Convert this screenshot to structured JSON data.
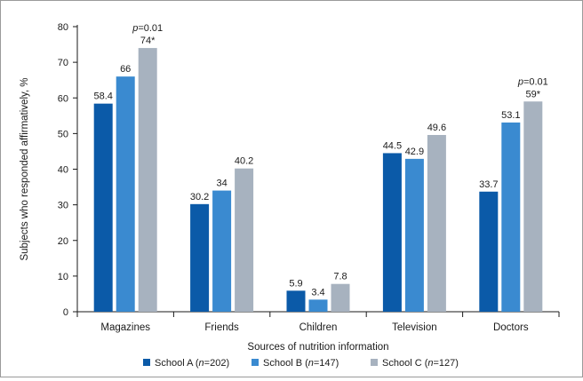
{
  "chart_data": {
    "type": "bar",
    "xlabel": "Sources of nutrition information",
    "ylabel": "Subjects who responded affirmatively, %",
    "ylim": [
      0,
      80
    ],
    "yticks": [
      0,
      10,
      20,
      30,
      40,
      50,
      60,
      70,
      80
    ],
    "grid": false,
    "legend_position": "bottom",
    "categories": [
      "Magazines",
      "Friends",
      "Children",
      "Television",
      "Doctors"
    ],
    "series": [
      {
        "name": "School A",
        "legend_n": "n",
        "legend_n_value": "=202)",
        "color": "#0b5aa8",
        "values": [
          58.4,
          30.2,
          5.9,
          44.5,
          33.7
        ],
        "labels": [
          "58.4",
          "30.2",
          "5.9",
          "44.5",
          "33.7"
        ]
      },
      {
        "name": "School B",
        "legend_n": "n",
        "legend_n_value": "=147)",
        "color": "#3a8ad0",
        "values": [
          66,
          34,
          3.4,
          42.9,
          53.1
        ],
        "labels": [
          "66",
          "34",
          "3.4",
          "42.9",
          "53.1"
        ]
      },
      {
        "name": "School C",
        "legend_n": "n",
        "legend_n_value": "=127)",
        "color": "#a7b2bf",
        "values": [
          74,
          40.2,
          7.8,
          49.6,
          59
        ],
        "labels": [
          "74*",
          "40.2",
          "7.8",
          "49.6",
          "59*"
        ]
      }
    ],
    "annotations": [
      {
        "category_index": 0,
        "series_index": 2,
        "italic": "p",
        "text": "=0.01"
      },
      {
        "category_index": 4,
        "series_index": 2,
        "italic": "p",
        "text": "=0.01"
      }
    ]
  }
}
